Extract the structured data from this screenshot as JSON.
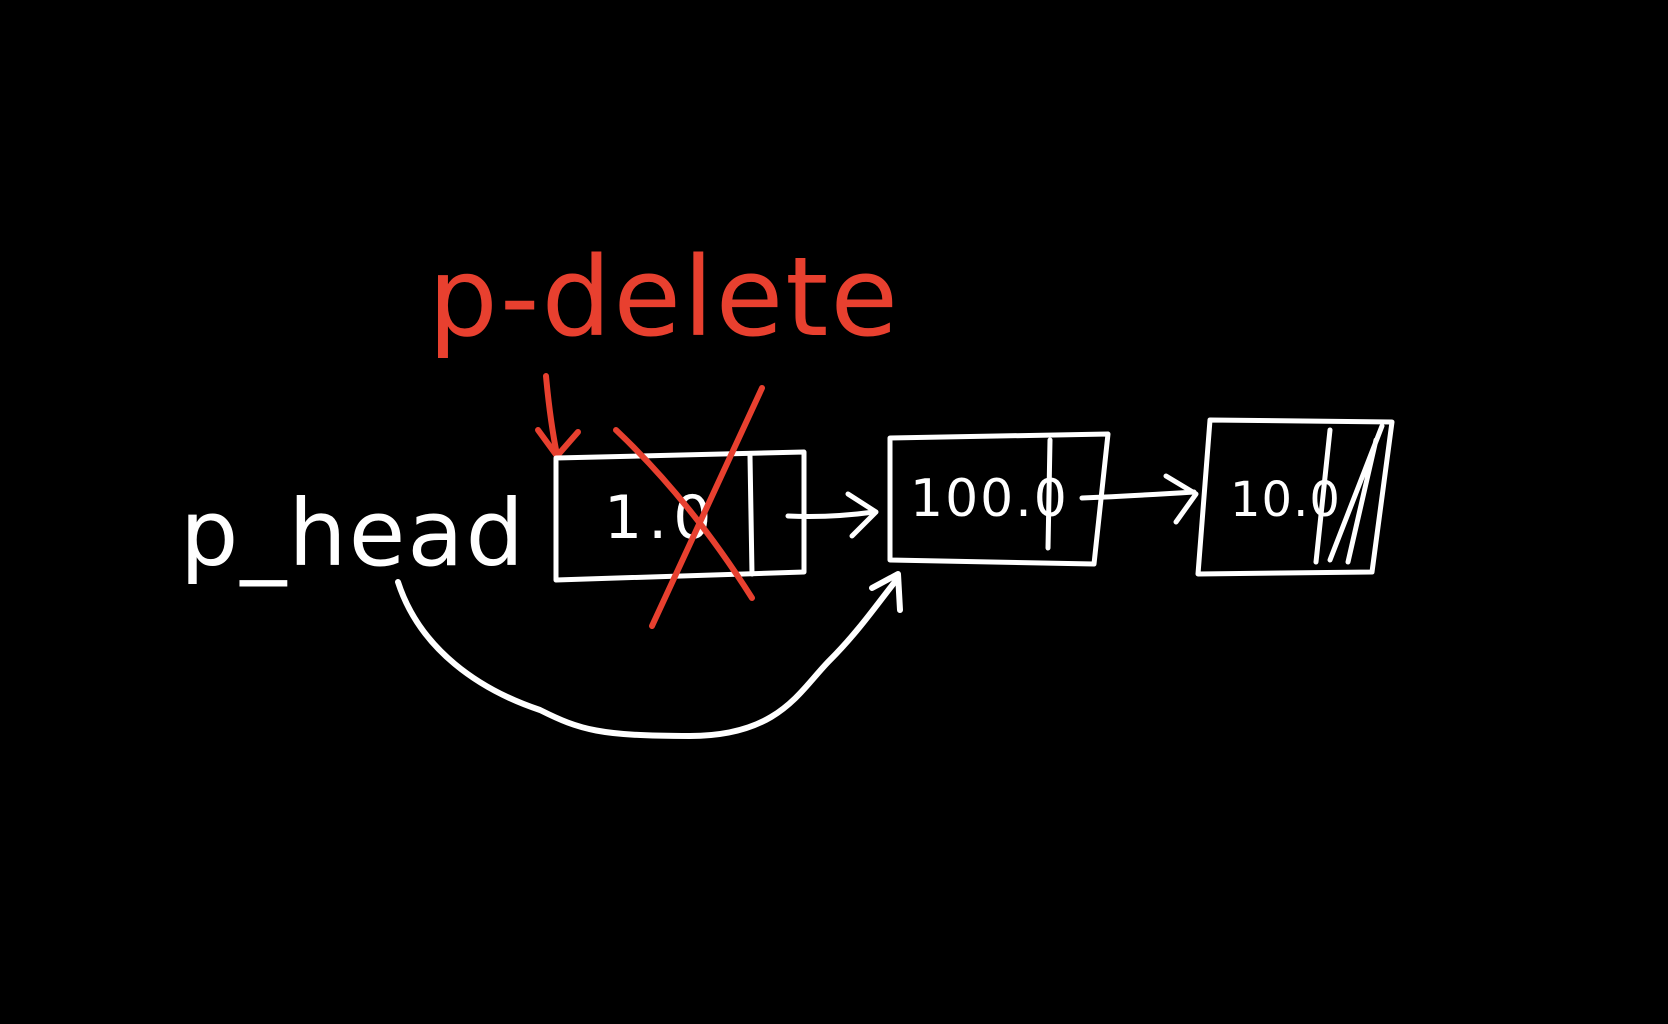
{
  "colors": {
    "background": "#000000",
    "ink": "#ffffff",
    "annotation": "#e8402f"
  },
  "labels": {
    "head_pointer": "p_head",
    "delete_pointer": "p-delete"
  },
  "nodes": [
    {
      "value": "1.0",
      "status": "deleted"
    },
    {
      "value": "100.0",
      "status": "active"
    },
    {
      "value": "10.0",
      "status": "active-null-next"
    }
  ]
}
